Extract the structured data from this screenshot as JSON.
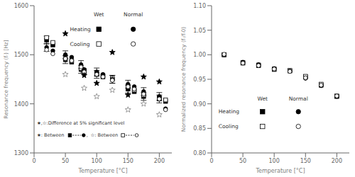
{
  "chart_data": [
    {
      "type": "scatter",
      "xlabel": "Temperature [°C]",
      "ylabel": "Resonance frequency (fᵣ) [Hz]",
      "xlim": [
        0,
        220
      ],
      "ylim": [
        1300,
        1600
      ],
      "xticks": [
        0,
        50,
        100,
        150,
        200
      ],
      "yticks": [
        1300,
        1400,
        1500,
        1600
      ],
      "legend": "upper right",
      "annotations": [
        "Wet",
        "Normal",
        "Heating",
        "Cooling",
        "★,☆:Difference at 5% significant level",
        "★: Between",
        ",",
        "☆: Between"
      ],
      "series": [
        {
          "type": "errorbar",
          "color": "black",
          "x": [
            20,
            50,
            75,
            100,
            125,
            150,
            175,
            200
          ],
          "values": [
            1530,
            1490,
            1470,
            1460,
            1450,
            1430,
            1415,
            1410
          ],
          "error": 8
        },
        {
          "type": "errorbar",
          "color": "black",
          "x": [
            20,
            50,
            75,
            100,
            125,
            150,
            175,
            200
          ],
          "values": [
            1515,
            1500,
            1480,
            1465,
            1450,
            1440,
            1425,
            1415
          ],
          "error": 8
        },
        {
          "marker": "square",
          "color": "black",
          "x": [
            20,
            30,
            50,
            60,
            75,
            80,
            100,
            110,
            125,
            150,
            160,
            175,
            200,
            210
          ],
          "values": [
            1530,
            1520,
            1490,
            1485,
            1470,
            1465,
            1460,
            1455,
            1450,
            1430,
            1425,
            1415,
            1410,
            1405
          ]
        },
        {
          "marker": "square_open",
          "color": "black",
          "x": [
            20,
            30,
            50,
            60,
            75,
            80,
            100,
            110,
            125,
            150,
            160,
            175,
            200,
            210
          ],
          "values": [
            1535,
            1525,
            1495,
            1488,
            1472,
            1468,
            1462,
            1457,
            1452,
            1435,
            1428,
            1418,
            1412,
            1408
          ]
        },
        {
          "marker": "circle",
          "color": "black",
          "x": [
            20,
            30,
            50,
            60,
            75,
            80,
            100,
            110,
            125,
            150,
            160,
            175,
            200,
            210
          ],
          "values": [
            1515,
            1508,
            1500,
            1495,
            1480,
            1470,
            1465,
            1460,
            1450,
            1440,
            1435,
            1425,
            1415,
            1390
          ]
        },
        {
          "marker": "circle_open",
          "color": "black",
          "x": [
            20,
            30,
            50,
            60,
            75,
            80,
            100,
            110,
            125,
            150,
            160,
            175,
            200,
            210
          ],
          "values": [
            1510,
            1502,
            1492,
            1488,
            1475,
            1465,
            1460,
            1455,
            1448,
            1435,
            1430,
            1420,
            1410,
            1388
          ]
        },
        {
          "marker": "star",
          "color": "black",
          "x": [
            50,
            80,
            100,
            125,
            150,
            175,
            200
          ],
          "values": [
            1543,
            1458,
            1442,
            1505,
            1418,
            1455,
            1445
          ]
        },
        {
          "marker": "star_open",
          "color": "gray",
          "x": [
            50,
            80,
            100,
            125,
            150,
            175,
            200
          ],
          "values": [
            1460,
            1432,
            1415,
            1428,
            1388,
            1400,
            1378
          ]
        }
      ]
    },
    {
      "type": "scatter",
      "xlabel": "Temperature [°C]",
      "ylabel": "Normalized resonance frequency (fᵣ/fᵣ0)",
      "xlim": [
        0,
        220
      ],
      "ylim": [
        0.8,
        1.1
      ],
      "xticks": [
        0,
        50,
        100,
        150,
        200
      ],
      "yticks": [
        {
          "value": 0.8,
          "label": "0.80"
        },
        0.85,
        {
          "value": 0.9,
          "label": "0.90"
        },
        0.95,
        {
          "value": 1.0,
          "label": "1.00"
        },
        1.05,
        {
          "value": 1.1,
          "label": "1.10"
        }
      ],
      "legend": "lower left",
      "annotations": [
        "Wet",
        "Normal",
        "Heating",
        "Cooling"
      ],
      "series": [
        {
          "marker": "square",
          "color": "black",
          "x": [
            20,
            50,
            75,
            100,
            125,
            150,
            175,
            200
          ],
          "values": [
            1.0,
            0.983,
            0.978,
            0.97,
            0.967,
            0.955,
            0.938,
            0.915
          ]
        },
        {
          "marker": "square_open",
          "color": "black",
          "x": [
            20,
            50,
            75,
            100,
            125,
            150,
            175,
            200
          ],
          "values": [
            1.0,
            0.984,
            0.979,
            0.971,
            0.968,
            0.956,
            0.94,
            0.916
          ]
        },
        {
          "marker": "circle",
          "color": "black",
          "x": [
            20,
            50,
            75,
            100,
            125,
            150,
            175,
            200
          ],
          "values": [
            1.0,
            0.985,
            0.98,
            0.972,
            0.967,
            0.952,
            0.937,
            0.915
          ]
        },
        {
          "marker": "circle_open",
          "color": "black",
          "x": [
            20,
            50,
            75,
            100,
            125,
            150,
            175,
            200
          ],
          "values": [
            1.001,
            0.983,
            0.978,
            0.971,
            0.966,
            0.953,
            0.938,
            0.916
          ]
        }
      ]
    }
  ]
}
